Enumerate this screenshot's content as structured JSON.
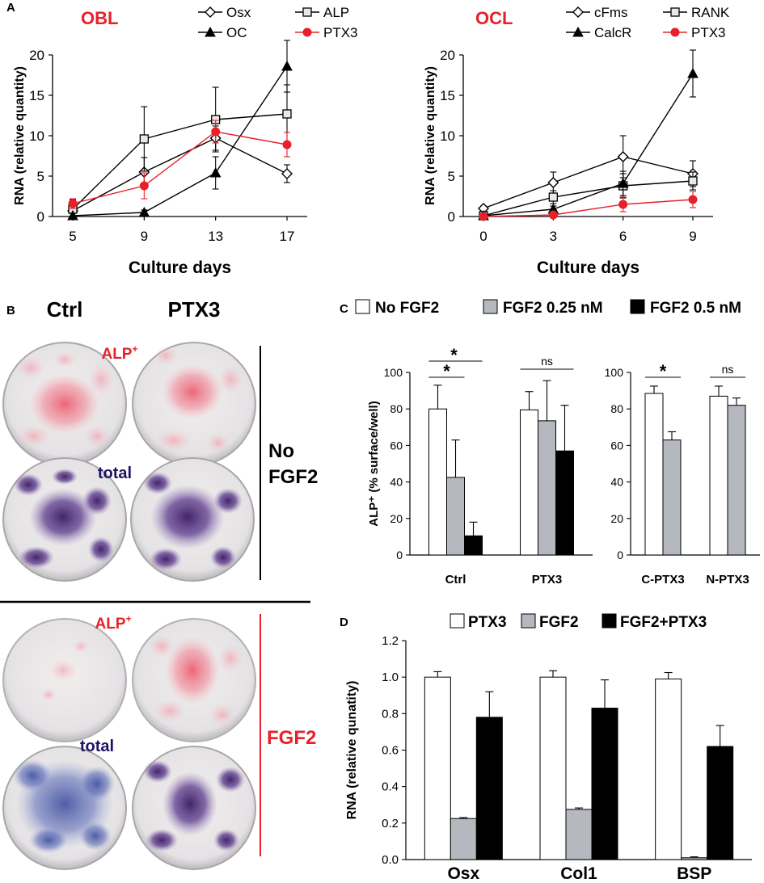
{
  "panels": {
    "A": "A",
    "B": "B",
    "C": "C",
    "D": "D"
  },
  "colors": {
    "red": "#e8202a",
    "navy": "#1c1462",
    "gray_bar": "#b5b9bf",
    "black": "#000000"
  },
  "chart_data": [
    {
      "id": "A-OBL",
      "type": "line",
      "title": "OBL",
      "xlabel": "Culture days",
      "ylabel": "RNA (relative quantity)",
      "x": [
        5,
        9,
        13,
        17
      ],
      "xticks": [
        "5",
        "9",
        "13",
        "17"
      ],
      "ylim": [
        0,
        20
      ],
      "yticks": [
        "0",
        "5",
        "10",
        "15",
        "20"
      ],
      "series": [
        {
          "name": "Osx",
          "marker": "diamond",
          "color": "#000000",
          "values": [
            0.7,
            5.5,
            9.7,
            5.3
          ],
          "errors": [
            0.8,
            1.8,
            1.5,
            1.1
          ]
        },
        {
          "name": "ALP",
          "marker": "square",
          "color": "#000000",
          "values": [
            0.9,
            9.6,
            12.0,
            12.7
          ],
          "errors": [
            1.2,
            4.0,
            4.0,
            3.6
          ]
        },
        {
          "name": "OC",
          "marker": "triangle",
          "color": "#000000",
          "values": [
            0.1,
            0.5,
            5.4,
            18.6
          ],
          "errors": [
            0.3,
            0.3,
            2.0,
            3.2
          ]
        },
        {
          "name": "PTX3",
          "marker": "circle",
          "color": "#e8202a",
          "values": [
            1.6,
            3.8,
            10.5,
            8.9
          ],
          "errors": [
            0.6,
            1.6,
            1.4,
            1.5
          ]
        }
      ]
    },
    {
      "id": "A-OCL",
      "type": "line",
      "title": "OCL",
      "xlabel": "Culture days",
      "ylabel": "RNA (relative quantity)",
      "x": [
        0,
        3,
        6,
        9
      ],
      "xticks": [
        "0",
        "3",
        "6",
        "9"
      ],
      "ylim": [
        0,
        20
      ],
      "yticks": [
        "0",
        "5",
        "10",
        "15",
        "20"
      ],
      "series": [
        {
          "name": "cFms",
          "marker": "diamond",
          "color": "#000000",
          "values": [
            1.0,
            4.2,
            7.4,
            5.3
          ],
          "errors": [
            0.3,
            1.3,
            2.6,
            1.6
          ]
        },
        {
          "name": "RANK",
          "marker": "square",
          "color": "#000000",
          "values": [
            0.1,
            2.4,
            3.8,
            4.4
          ],
          "errors": [
            0.2,
            0.8,
            1.5,
            1.1
          ]
        },
        {
          "name": "CalcR",
          "marker": "triangle",
          "color": "#000000",
          "values": [
            0.1,
            0.9,
            4.1,
            17.7
          ],
          "errors": [
            0.2,
            0.4,
            1.5,
            2.9
          ]
        },
        {
          "name": "PTX3",
          "marker": "circle",
          "color": "#e8202a",
          "values": [
            0.0,
            0.2,
            1.5,
            2.1
          ],
          "errors": [
            0.1,
            0.2,
            0.9,
            1.0
          ]
        }
      ]
    },
    {
      "id": "C-left",
      "type": "bar",
      "ylabel": "ALP⁺ (% surface/well)",
      "ylim": [
        0,
        100
      ],
      "yticks": [
        "0",
        "20",
        "40",
        "60",
        "80",
        "100"
      ],
      "categories": [
        "Ctrl",
        "PTX3"
      ],
      "series": [
        {
          "name": "No FGF2",
          "color": "#ffffff",
          "values": [
            80,
            79.5
          ],
          "errors": [
            13,
            10
          ]
        },
        {
          "name": "FGF2 0.25 nM",
          "color": "#b5b9bf",
          "values": [
            42.5,
            73.5
          ],
          "errors": [
            20.5,
            22
          ]
        },
        {
          "name": "FGF2 0.5 nM",
          "color": "#000000",
          "values": [
            10.5,
            57
          ],
          "errors": [
            7.5,
            25
          ]
        }
      ],
      "annotations": [
        "*",
        "*",
        "ns"
      ]
    },
    {
      "id": "C-right",
      "type": "bar",
      "ylim": [
        0,
        100
      ],
      "yticks": [
        "0",
        "20",
        "40",
        "60",
        "80",
        "100"
      ],
      "categories": [
        "C-PTX3",
        "N-PTX3"
      ],
      "series": [
        {
          "name": "No FGF2",
          "color": "#ffffff",
          "values": [
            88.5,
            87
          ],
          "errors": [
            4,
            5.5
          ]
        },
        {
          "name": "FGF2 0.25 nM",
          "color": "#b5b9bf",
          "values": [
            63,
            82
          ],
          "errors": [
            4.5,
            4
          ]
        }
      ],
      "annotations": [
        "*",
        "ns"
      ]
    },
    {
      "id": "D",
      "type": "bar",
      "ylabel": "RNA (relative qunatity)",
      "ylim": [
        0,
        1.2
      ],
      "yticks": [
        "0.0",
        "0.2",
        "0.4",
        "0.6",
        "0.8",
        "1.0",
        "1.2"
      ],
      "categories": [
        "Osx",
        "Col1",
        "BSP"
      ],
      "series": [
        {
          "name": "PTX3",
          "color": "#ffffff",
          "values": [
            1.0,
            1.0,
            0.99
          ],
          "errors": [
            0.03,
            0.035,
            0.035
          ]
        },
        {
          "name": "FGF2",
          "color": "#b5b9bf",
          "values": [
            0.225,
            0.275,
            0.01
          ],
          "errors": [
            0.005,
            0.008,
            0.005
          ]
        },
        {
          "name": "FGF2+PTX3",
          "color": "#000000",
          "values": [
            0.78,
            0.83,
            0.62
          ],
          "errors": [
            0.14,
            0.155,
            0.115
          ]
        }
      ]
    }
  ],
  "panel_b": {
    "col_ctrl": "Ctrl",
    "col_ptx3": "PTX3",
    "alp_label": "ALP",
    "alp_sup": "+",
    "total_label": "total",
    "group1_line1": "No",
    "group1_line2": "FGF2",
    "group2_label": "FGF2"
  }
}
